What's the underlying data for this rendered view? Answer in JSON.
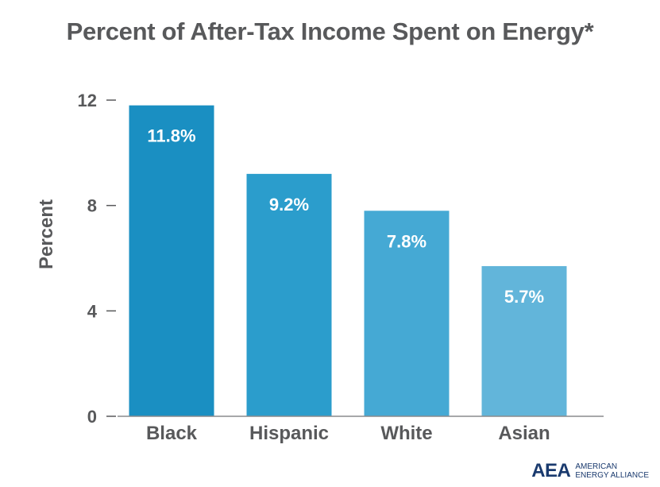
{
  "chart_data": {
    "type": "bar",
    "title": "Percent of After-Tax Income Spent on Energy*",
    "ylabel": "Percent",
    "xlabel": "",
    "categories": [
      "Black",
      "Hispanic",
      "White",
      "Asian"
    ],
    "values": [
      11.8,
      9.2,
      7.8,
      5.7
    ],
    "data_labels": [
      "11.8%",
      "9.2%",
      "7.8%",
      "5.7%"
    ],
    "ylim": [
      0,
      12
    ],
    "yticks": [
      0,
      4,
      8,
      12
    ],
    "colors": [
      "#1a8fc2",
      "#2b9dcc",
      "#45a9d4",
      "#62b5da"
    ],
    "grid": false
  },
  "logo": {
    "mark": "AEA",
    "line1": "AMERICAN",
    "line2": "ENERGY ALLIANCE"
  }
}
